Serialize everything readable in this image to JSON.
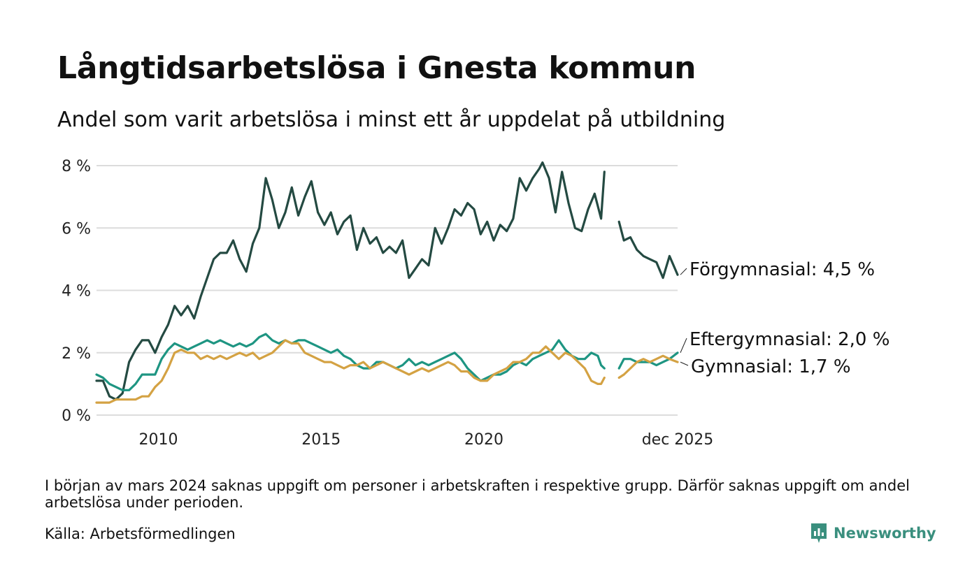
{
  "header": {
    "title": "Långtidsarbetslösa i Gnesta kommun",
    "subtitle": "Andel som varit arbetslösa i minst ett år uppdelat på utbildning"
  },
  "footer": {
    "note": "I början av mars 2024 saknas uppgift om personer i arbetskraften i respektive grupp. Därför saknas uppgift om andel arbetslösa under perioden.",
    "source": "Källa: Arbetsförmedlingen",
    "brand": "Newsworthy"
  },
  "colors": {
    "forgymnasial": "#244a42",
    "eftergymnasial": "#1e9582",
    "gymnasial": "#d4a243",
    "grid": "#dcdcdc"
  },
  "chart_data": {
    "type": "line",
    "title": "Långtidsarbetslösa i Gnesta kommun",
    "subtitle": "Andel som varit arbetslösa i minst ett år uppdelat på utbildning",
    "xlabel": "",
    "ylabel": "",
    "x_unit": "year (decimal)",
    "xlim": [
      2008.1,
      2025.95
    ],
    "ylim": [
      0,
      8
    ],
    "grid": true,
    "y_ticks": [
      {
        "value": 0,
        "label": "0 %"
      },
      {
        "value": 2,
        "label": "2 %"
      },
      {
        "value": 4,
        "label": "4 %"
      },
      {
        "value": 6,
        "label": "6 %"
      },
      {
        "value": 8,
        "label": "8 %"
      }
    ],
    "x_ticks": [
      {
        "value": 2010,
        "label": "2010"
      },
      {
        "value": 2015,
        "label": "2015"
      },
      {
        "value": 2020,
        "label": "2020"
      },
      {
        "value": 2025.95,
        "label": "dec 2025"
      }
    ],
    "gap": {
      "from": 2023.7,
      "to": 2024.15
    },
    "series": [
      {
        "name": "Förgymnasial",
        "color_key": "forgymnasial",
        "end_label": "Förgymnasial: 4,5 %",
        "last_value": 4.5,
        "points": [
          [
            2008.1,
            1.1
          ],
          [
            2008.3,
            1.1
          ],
          [
            2008.5,
            0.6
          ],
          [
            2008.7,
            0.5
          ],
          [
            2008.9,
            0.7
          ],
          [
            2009.1,
            1.7
          ],
          [
            2009.3,
            2.1
          ],
          [
            2009.5,
            2.4
          ],
          [
            2009.7,
            2.4
          ],
          [
            2009.9,
            2.0
          ],
          [
            2010.1,
            2.5
          ],
          [
            2010.3,
            2.9
          ],
          [
            2010.5,
            3.5
          ],
          [
            2010.7,
            3.2
          ],
          [
            2010.9,
            3.5
          ],
          [
            2011.1,
            3.1
          ],
          [
            2011.3,
            3.8
          ],
          [
            2011.5,
            4.4
          ],
          [
            2011.7,
            5.0
          ],
          [
            2011.9,
            5.2
          ],
          [
            2012.1,
            5.2
          ],
          [
            2012.3,
            5.6
          ],
          [
            2012.5,
            5.0
          ],
          [
            2012.7,
            4.6
          ],
          [
            2012.9,
            5.5
          ],
          [
            2013.1,
            6.0
          ],
          [
            2013.3,
            7.6
          ],
          [
            2013.5,
            6.9
          ],
          [
            2013.7,
            6.0
          ],
          [
            2013.9,
            6.5
          ],
          [
            2014.1,
            7.3
          ],
          [
            2014.3,
            6.4
          ],
          [
            2014.5,
            7.0
          ],
          [
            2014.7,
            7.5
          ],
          [
            2014.9,
            6.5
          ],
          [
            2015.1,
            6.1
          ],
          [
            2015.3,
            6.5
          ],
          [
            2015.5,
            5.8
          ],
          [
            2015.7,
            6.2
          ],
          [
            2015.9,
            6.4
          ],
          [
            2016.1,
            5.3
          ],
          [
            2016.3,
            6.0
          ],
          [
            2016.5,
            5.5
          ],
          [
            2016.7,
            5.7
          ],
          [
            2016.9,
            5.2
          ],
          [
            2017.1,
            5.4
          ],
          [
            2017.3,
            5.2
          ],
          [
            2017.5,
            5.6
          ],
          [
            2017.7,
            4.4
          ],
          [
            2017.9,
            4.7
          ],
          [
            2018.1,
            5.0
          ],
          [
            2018.3,
            4.8
          ],
          [
            2018.5,
            6.0
          ],
          [
            2018.7,
            5.5
          ],
          [
            2018.9,
            6.0
          ],
          [
            2019.1,
            6.6
          ],
          [
            2019.3,
            6.4
          ],
          [
            2019.5,
            6.8
          ],
          [
            2019.7,
            6.6
          ],
          [
            2019.9,
            5.8
          ],
          [
            2020.1,
            6.2
          ],
          [
            2020.3,
            5.6
          ],
          [
            2020.5,
            6.1
          ],
          [
            2020.7,
            5.9
          ],
          [
            2020.9,
            6.3
          ],
          [
            2021.1,
            7.6
          ],
          [
            2021.3,
            7.2
          ],
          [
            2021.5,
            7.6
          ],
          [
            2021.7,
            7.9
          ],
          [
            2021.8,
            8.1
          ],
          [
            2022.0,
            7.6
          ],
          [
            2022.2,
            6.5
          ],
          [
            2022.4,
            7.8
          ],
          [
            2022.6,
            6.8
          ],
          [
            2022.8,
            6.0
          ],
          [
            2023.0,
            5.9
          ],
          [
            2023.2,
            6.6
          ],
          [
            2023.4,
            7.1
          ],
          [
            2023.6,
            6.3
          ],
          [
            2023.7,
            7.8
          ],
          [
            2024.15,
            6.2
          ],
          [
            2024.3,
            5.6
          ],
          [
            2024.5,
            5.7
          ],
          [
            2024.7,
            5.3
          ],
          [
            2024.9,
            5.1
          ],
          [
            2025.1,
            5.0
          ],
          [
            2025.3,
            4.9
          ],
          [
            2025.5,
            4.4
          ],
          [
            2025.7,
            5.1
          ],
          [
            2025.95,
            4.5
          ]
        ]
      },
      {
        "name": "Eftergymnasial",
        "color_key": "eftergymnasial",
        "end_label": "Eftergymnasial: 2,0 %",
        "last_value": 2.0,
        "points": [
          [
            2008.1,
            1.3
          ],
          [
            2008.3,
            1.2
          ],
          [
            2008.5,
            1.0
          ],
          [
            2008.7,
            0.9
          ],
          [
            2008.9,
            0.8
          ],
          [
            2009.1,
            0.8
          ],
          [
            2009.3,
            1.0
          ],
          [
            2009.5,
            1.3
          ],
          [
            2009.7,
            1.3
          ],
          [
            2009.9,
            1.3
          ],
          [
            2010.1,
            1.8
          ],
          [
            2010.3,
            2.1
          ],
          [
            2010.5,
            2.3
          ],
          [
            2010.7,
            2.2
          ],
          [
            2010.9,
            2.1
          ],
          [
            2011.1,
            2.2
          ],
          [
            2011.3,
            2.3
          ],
          [
            2011.5,
            2.4
          ],
          [
            2011.7,
            2.3
          ],
          [
            2011.9,
            2.4
          ],
          [
            2012.1,
            2.3
          ],
          [
            2012.3,
            2.2
          ],
          [
            2012.5,
            2.3
          ],
          [
            2012.7,
            2.2
          ],
          [
            2012.9,
            2.3
          ],
          [
            2013.1,
            2.5
          ],
          [
            2013.3,
            2.6
          ],
          [
            2013.5,
            2.4
          ],
          [
            2013.7,
            2.3
          ],
          [
            2013.9,
            2.4
          ],
          [
            2014.1,
            2.3
          ],
          [
            2014.3,
            2.4
          ],
          [
            2014.5,
            2.4
          ],
          [
            2014.7,
            2.3
          ],
          [
            2014.9,
            2.2
          ],
          [
            2015.1,
            2.1
          ],
          [
            2015.3,
            2.0
          ],
          [
            2015.5,
            2.1
          ],
          [
            2015.7,
            1.9
          ],
          [
            2015.9,
            1.8
          ],
          [
            2016.1,
            1.6
          ],
          [
            2016.3,
            1.5
          ],
          [
            2016.5,
            1.5
          ],
          [
            2016.7,
            1.7
          ],
          [
            2016.9,
            1.7
          ],
          [
            2017.1,
            1.6
          ],
          [
            2017.3,
            1.5
          ],
          [
            2017.5,
            1.6
          ],
          [
            2017.7,
            1.8
          ],
          [
            2017.9,
            1.6
          ],
          [
            2018.1,
            1.7
          ],
          [
            2018.3,
            1.6
          ],
          [
            2018.5,
            1.7
          ],
          [
            2018.7,
            1.8
          ],
          [
            2018.9,
            1.9
          ],
          [
            2019.1,
            2.0
          ],
          [
            2019.3,
            1.8
          ],
          [
            2019.5,
            1.5
          ],
          [
            2019.7,
            1.3
          ],
          [
            2019.9,
            1.1
          ],
          [
            2020.1,
            1.2
          ],
          [
            2020.3,
            1.3
          ],
          [
            2020.5,
            1.3
          ],
          [
            2020.7,
            1.4
          ],
          [
            2020.9,
            1.6
          ],
          [
            2021.1,
            1.7
          ],
          [
            2021.3,
            1.6
          ],
          [
            2021.5,
            1.8
          ],
          [
            2021.7,
            1.9
          ],
          [
            2021.9,
            2.0
          ],
          [
            2022.1,
            2.1
          ],
          [
            2022.3,
            2.4
          ],
          [
            2022.5,
            2.1
          ],
          [
            2022.7,
            1.9
          ],
          [
            2022.9,
            1.8
          ],
          [
            2023.1,
            1.8
          ],
          [
            2023.3,
            2.0
          ],
          [
            2023.5,
            1.9
          ],
          [
            2023.6,
            1.6
          ],
          [
            2023.7,
            1.5
          ],
          [
            2024.15,
            1.5
          ],
          [
            2024.3,
            1.8
          ],
          [
            2024.5,
            1.8
          ],
          [
            2024.7,
            1.7
          ],
          [
            2024.9,
            1.7
          ],
          [
            2025.1,
            1.7
          ],
          [
            2025.3,
            1.6
          ],
          [
            2025.5,
            1.7
          ],
          [
            2025.7,
            1.8
          ],
          [
            2025.95,
            2.0
          ]
        ]
      },
      {
        "name": "Gymnasial",
        "color_key": "gymnasial",
        "end_label": "Gymnasial: 1,7 %",
        "last_value": 1.7,
        "points": [
          [
            2008.1,
            0.4
          ],
          [
            2008.3,
            0.4
          ],
          [
            2008.5,
            0.4
          ],
          [
            2008.7,
            0.5
          ],
          [
            2008.9,
            0.5
          ],
          [
            2009.1,
            0.5
          ],
          [
            2009.3,
            0.5
          ],
          [
            2009.5,
            0.6
          ],
          [
            2009.7,
            0.6
          ],
          [
            2009.9,
            0.9
          ],
          [
            2010.1,
            1.1
          ],
          [
            2010.3,
            1.5
          ],
          [
            2010.5,
            2.0
          ],
          [
            2010.7,
            2.1
          ],
          [
            2010.9,
            2.0
          ],
          [
            2011.1,
            2.0
          ],
          [
            2011.3,
            1.8
          ],
          [
            2011.5,
            1.9
          ],
          [
            2011.7,
            1.8
          ],
          [
            2011.9,
            1.9
          ],
          [
            2012.1,
            1.8
          ],
          [
            2012.3,
            1.9
          ],
          [
            2012.5,
            2.0
          ],
          [
            2012.7,
            1.9
          ],
          [
            2012.9,
            2.0
          ],
          [
            2013.1,
            1.8
          ],
          [
            2013.3,
            1.9
          ],
          [
            2013.5,
            2.0
          ],
          [
            2013.7,
            2.2
          ],
          [
            2013.9,
            2.4
          ],
          [
            2014.1,
            2.3
          ],
          [
            2014.3,
            2.3
          ],
          [
            2014.5,
            2.0
          ],
          [
            2014.7,
            1.9
          ],
          [
            2014.9,
            1.8
          ],
          [
            2015.1,
            1.7
          ],
          [
            2015.3,
            1.7
          ],
          [
            2015.5,
            1.6
          ],
          [
            2015.7,
            1.5
          ],
          [
            2015.9,
            1.6
          ],
          [
            2016.1,
            1.6
          ],
          [
            2016.3,
            1.7
          ],
          [
            2016.5,
            1.5
          ],
          [
            2016.7,
            1.6
          ],
          [
            2016.9,
            1.7
          ],
          [
            2017.1,
            1.6
          ],
          [
            2017.3,
            1.5
          ],
          [
            2017.5,
            1.4
          ],
          [
            2017.7,
            1.3
          ],
          [
            2017.9,
            1.4
          ],
          [
            2018.1,
            1.5
          ],
          [
            2018.3,
            1.4
          ],
          [
            2018.5,
            1.5
          ],
          [
            2018.7,
            1.6
          ],
          [
            2018.9,
            1.7
          ],
          [
            2019.1,
            1.6
          ],
          [
            2019.3,
            1.4
          ],
          [
            2019.5,
            1.4
          ],
          [
            2019.7,
            1.2
          ],
          [
            2019.9,
            1.1
          ],
          [
            2020.1,
            1.1
          ],
          [
            2020.3,
            1.3
          ],
          [
            2020.5,
            1.4
          ],
          [
            2020.7,
            1.5
          ],
          [
            2020.9,
            1.7
          ],
          [
            2021.1,
            1.7
          ],
          [
            2021.3,
            1.8
          ],
          [
            2021.5,
            2.0
          ],
          [
            2021.7,
            2.0
          ],
          [
            2021.9,
            2.2
          ],
          [
            2022.1,
            2.0
          ],
          [
            2022.3,
            1.8
          ],
          [
            2022.5,
            2.0
          ],
          [
            2022.7,
            1.9
          ],
          [
            2022.9,
            1.7
          ],
          [
            2023.1,
            1.5
          ],
          [
            2023.3,
            1.1
          ],
          [
            2023.5,
            1.0
          ],
          [
            2023.6,
            1.0
          ],
          [
            2023.7,
            1.2
          ],
          [
            2024.15,
            1.2
          ],
          [
            2024.3,
            1.3
          ],
          [
            2024.5,
            1.5
          ],
          [
            2024.7,
            1.7
          ],
          [
            2024.9,
            1.8
          ],
          [
            2025.1,
            1.7
          ],
          [
            2025.3,
            1.8
          ],
          [
            2025.5,
            1.9
          ],
          [
            2025.7,
            1.8
          ],
          [
            2025.95,
            1.7
          ]
        ]
      }
    ]
  }
}
